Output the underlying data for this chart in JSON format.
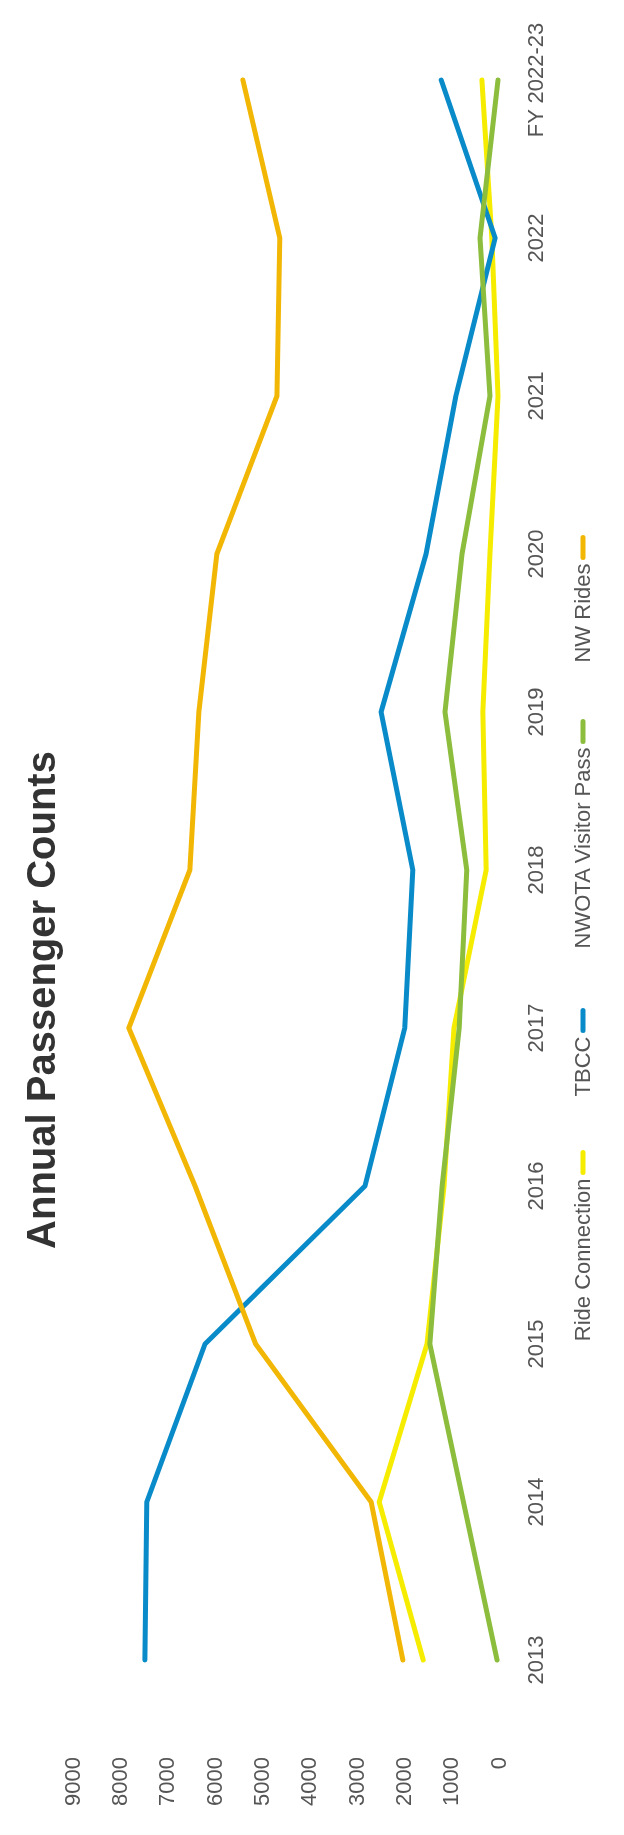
{
  "chart_data": {
    "type": "line",
    "title": "Annual Passenger Counts",
    "orientation": "horizontal",
    "categories": [
      "FY 2022-23",
      "2022",
      "2021",
      "2020",
      "2019",
      "2018",
      "2017",
      "2016",
      "2015",
      "2014",
      "2013"
    ],
    "series": [
      {
        "name": "Ride Connection",
        "color": "#f5ec00",
        "values": [
          340,
          130,
          0,
          170,
          320,
          250,
          930,
          1140,
          1500,
          2510,
          1580
        ]
      },
      {
        "name": "TBCC",
        "color": "#0a8bc9",
        "values": [
          1200,
          60,
          890,
          1520,
          2470,
          1800,
          1970,
          2810,
          6190,
          7420,
          7460
        ]
      },
      {
        "name": "NWOTA Visitor Pass",
        "color": "#8cbd3c",
        "values": [
          0,
          380,
          170,
          760,
          1120,
          660,
          820,
          1180,
          1440,
          730,
          20
        ]
      },
      {
        "name": "NW Rides",
        "color": "#f2b705",
        "values": [
          5390,
          4610,
          4670,
          5940,
          6320,
          6510,
          7800,
          6400,
          5120,
          2680,
          2010
        ]
      }
    ],
    "xlim": [
      9000,
      0
    ],
    "xticks": [
      9000,
      8000,
      7000,
      6000,
      5000,
      4000,
      3000,
      2000,
      1000,
      0
    ],
    "legend": "bottom",
    "grid": false,
    "marker": "none",
    "line_style": "solid"
  }
}
